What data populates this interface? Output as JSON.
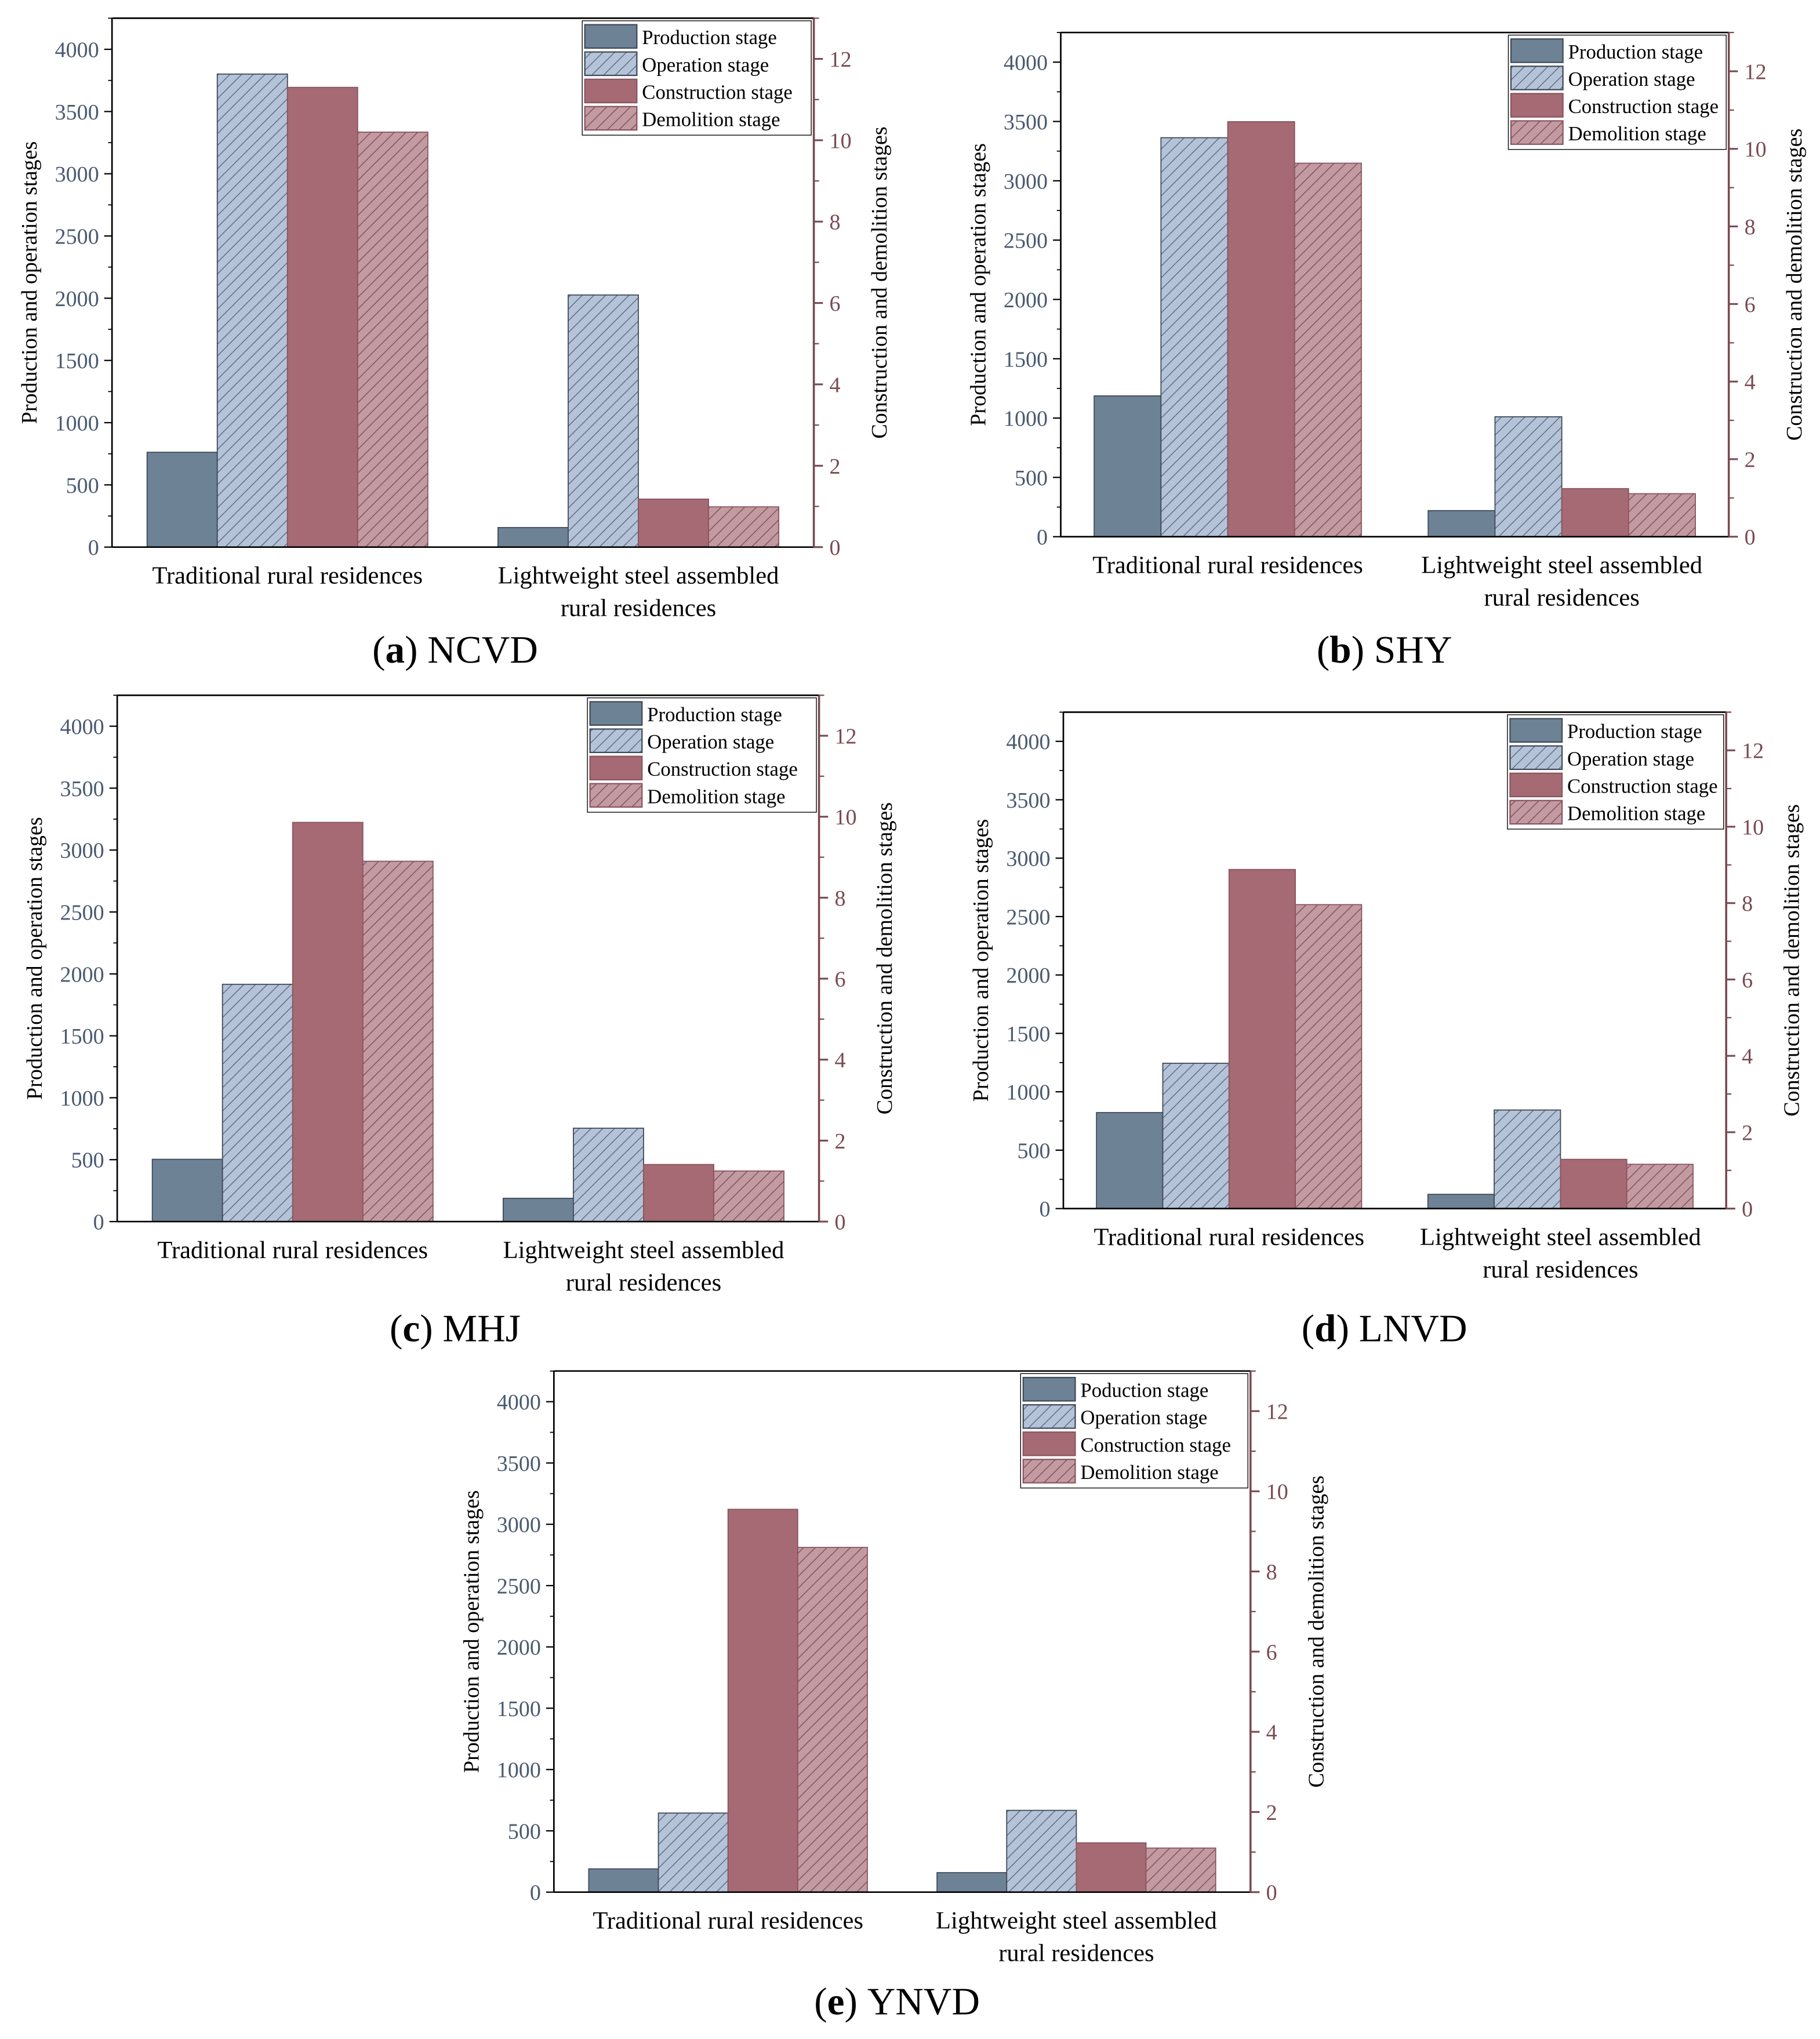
{
  "colors": {
    "production": "#6e8296",
    "operation": "#b4c3d7",
    "construction": "#a56a74",
    "demolition": "#c39aa2",
    "left_axis": "#4a5a70",
    "right_axis": "#7a4a52"
  },
  "chart_data": [
    {
      "type": "bar",
      "panel_letter": "a",
      "title": "NCVD",
      "categories": [
        "Traditional rural residences",
        "Lightweight steel assembled rural residences"
      ],
      "category_lines": [
        [
          "Traditional rural residences"
        ],
        [
          "Lightweight steel assembled",
          "rural residences"
        ]
      ],
      "ylabel": "Production and operation stages",
      "y2label": "Construction and demolition stages",
      "ylim": [
        0,
        4250
      ],
      "yticks": [
        0,
        500,
        1000,
        1500,
        2000,
        2500,
        3000,
        3500,
        4000
      ],
      "y2lim": [
        0,
        13
      ],
      "y2ticks": [
        0,
        2,
        4,
        6,
        8,
        10,
        12
      ],
      "legend": [
        "Production stage",
        "Operation stage",
        "Construction stage",
        "Demolition stage"
      ],
      "legend_position": "top-right",
      "series": [
        {
          "name": "Production stage",
          "axis": "left",
          "values": [
            762,
            157
          ]
        },
        {
          "name": "Operation stage",
          "axis": "left",
          "values": [
            3801,
            2026
          ]
        },
        {
          "name": "Construction stage",
          "axis": "right",
          "values": [
            11.3,
            1.18
          ]
        },
        {
          "name": "Demolition stage",
          "axis": "right",
          "values": [
            10.2,
            0.99
          ]
        }
      ]
    },
    {
      "type": "bar",
      "panel_letter": "b",
      "title": "SHY",
      "categories": [
        "Traditional rural residences",
        "Lightweight steel assembled rural residences"
      ],
      "category_lines": [
        [
          "Traditional rural residences"
        ],
        [
          "Lightweight steel assembled",
          "rural residences"
        ]
      ],
      "ylabel": "Production and operation stages",
      "y2label": "Construction and demolition stages",
      "ylim": [
        0,
        4250
      ],
      "yticks": [
        0,
        500,
        1000,
        1500,
        2000,
        2500,
        3000,
        3500,
        4000
      ],
      "y2lim": [
        0,
        13
      ],
      "y2ticks": [
        0,
        2,
        4,
        6,
        8,
        10,
        12
      ],
      "legend": [
        "Production stage",
        "Operation stage",
        "Construction stage",
        "Demolition stage"
      ],
      "legend_position": "top-right",
      "series": [
        {
          "name": "Production stage",
          "axis": "left",
          "values": [
            1187,
            220
          ]
        },
        {
          "name": "Operation stage",
          "axis": "left",
          "values": [
            3363,
            1011
          ]
        },
        {
          "name": "Construction stage",
          "axis": "right",
          "values": [
            10.7,
            1.24
          ]
        },
        {
          "name": "Demolition stage",
          "axis": "right",
          "values": [
            9.63,
            1.11
          ]
        }
      ]
    },
    {
      "type": "bar",
      "panel_letter": "c",
      "title": "MHJ",
      "categories": [
        "Traditional rural residences",
        "Lightweight steel assembled rural residences"
      ],
      "category_lines": [
        [
          "Traditional rural residences"
        ],
        [
          "Lightweight steel assembled",
          "rural residences"
        ]
      ],
      "ylabel": "Production and operation stages",
      "y2label": "Construction and demolition stages",
      "ylim": [
        0,
        4250
      ],
      "yticks": [
        0,
        500,
        1000,
        1500,
        2000,
        2500,
        3000,
        3500,
        4000
      ],
      "y2lim": [
        0,
        13
      ],
      "y2ticks": [
        0,
        2,
        4,
        6,
        8,
        10,
        12
      ],
      "legend": [
        "Production stage",
        "Operation stage",
        "Construction stage",
        "Demolition stage"
      ],
      "legend_position": "top-right",
      "series": [
        {
          "name": "Production stage",
          "axis": "left",
          "values": [
            503,
            188
          ]
        },
        {
          "name": "Operation stage",
          "axis": "left",
          "values": [
            1916,
            754
          ]
        },
        {
          "name": "Construction stage",
          "axis": "right",
          "values": [
            9.86,
            1.41
          ]
        },
        {
          "name": "Demolition stage",
          "axis": "right",
          "values": [
            8.9,
            1.25
          ]
        }
      ]
    },
    {
      "type": "bar",
      "panel_letter": "d",
      "title": "LNVD",
      "categories": [
        "Traditional rural residences",
        "Lightweight steel assembled rural residences"
      ],
      "category_lines": [
        [
          "Traditional rural residences"
        ],
        [
          "Lightweight steel assembled",
          "rural residences"
        ]
      ],
      "ylabel": "Production and operation stages",
      "y2label": "Construction and demolition stages",
      "ylim": [
        0,
        4250
      ],
      "yticks": [
        0,
        500,
        1000,
        1500,
        2000,
        2500,
        3000,
        3500,
        4000
      ],
      "y2lim": [
        0,
        13
      ],
      "y2ticks": [
        0,
        2,
        4,
        6,
        8,
        10,
        12
      ],
      "legend": [
        "Production stage",
        "Operation stage",
        "Construction stage",
        "Demolition stage"
      ],
      "legend_position": "top-right",
      "series": [
        {
          "name": "Production stage",
          "axis": "left",
          "values": [
            822,
            122
          ]
        },
        {
          "name": "Operation stage",
          "axis": "left",
          "values": [
            1244,
            844
          ]
        },
        {
          "name": "Construction stage",
          "axis": "right",
          "values": [
            8.88,
            1.29
          ]
        },
        {
          "name": "Demolition stage",
          "axis": "right",
          "values": [
            7.96,
            1.16
          ]
        }
      ]
    },
    {
      "type": "bar",
      "panel_letter": "e",
      "title": "YNVD",
      "categories": [
        "Traditional rural residences",
        "Lightweight steel assembled rural residences"
      ],
      "category_lines": [
        [
          "Traditional rural residences"
        ],
        [
          "Lightweight steel assembled",
          "rural residences"
        ]
      ],
      "ylabel": "Production and operation stages",
      "y2label": "Construction and demolition stages",
      "ylim": [
        0,
        4250
      ],
      "yticks": [
        0,
        500,
        1000,
        1500,
        2000,
        2500,
        3000,
        3500,
        4000
      ],
      "y2lim": [
        0,
        13
      ],
      "y2ticks": [
        0,
        2,
        4,
        6,
        8,
        10,
        12
      ],
      "legend": [
        "Poduction stage",
        "Operation stage",
        "Construction stage",
        "Demolition stage"
      ],
      "legend_position": "top-right",
      "series": [
        {
          "name": "Poduction stage",
          "axis": "left",
          "values": [
            190,
            159
          ]
        },
        {
          "name": "Operation stage",
          "axis": "left",
          "values": [
            645,
            667
          ]
        },
        {
          "name": "Construction stage",
          "axis": "right",
          "values": [
            9.55,
            1.23
          ]
        },
        {
          "name": "Demolition stage",
          "axis": "right",
          "values": [
            8.6,
            1.1
          ]
        }
      ]
    }
  ]
}
